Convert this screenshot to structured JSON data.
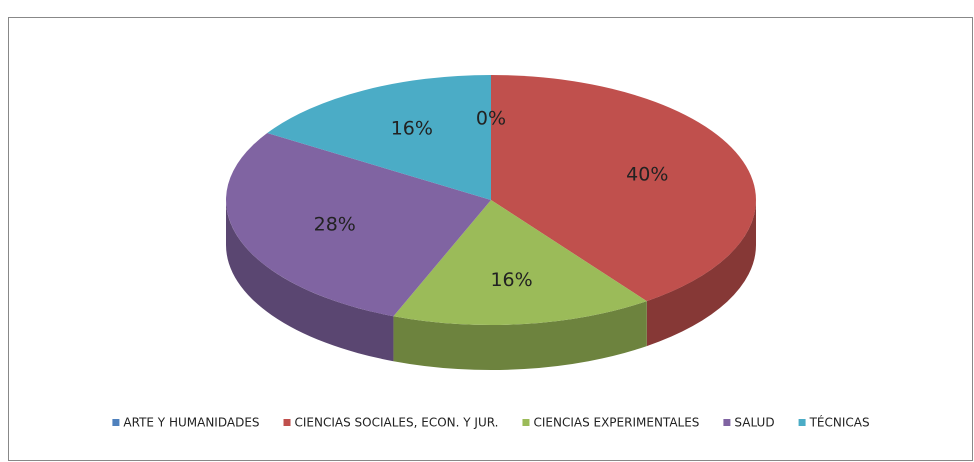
{
  "chart_data": {
    "type": "pie",
    "categories": [
      "ARTE Y HUMANIDADES",
      "CIENCIAS SOCIALES, ECON. Y JUR.",
      "CIENCIAS EXPERIMENTALES",
      "SALUD",
      "TÉCNICAS"
    ],
    "values": [
      0,
      40,
      16,
      28,
      16
    ],
    "value_labels": [
      "0%",
      "40%",
      "16%",
      "28%",
      "16%"
    ],
    "colors": [
      "#4f81bd",
      "#c0504d",
      "#9bbb59",
      "#8064a2",
      "#4bacc6"
    ],
    "legend": "bottom"
  }
}
